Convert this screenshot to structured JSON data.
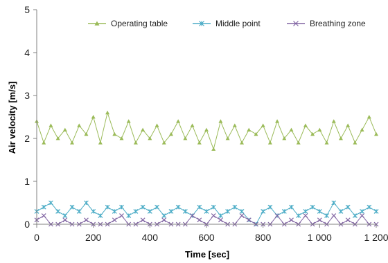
{
  "chart_data": {
    "type": "line",
    "title": "",
    "xlabel": "Time [sec]",
    "ylabel": "Air velocity [m/s]",
    "xlim": [
      0,
      1200
    ],
    "ylim": [
      0,
      5
    ],
    "xticks": [
      0,
      200,
      400,
      600,
      800,
      1000,
      1200
    ],
    "xtick_labels": [
      "0",
      "200",
      "400",
      "600",
      "800",
      "1 000",
      "1 200"
    ],
    "yticks": [
      0,
      1,
      2,
      3,
      4,
      5
    ],
    "ytick_labels": [
      "0",
      "1",
      "2",
      "3",
      "4",
      "5"
    ],
    "grid": false,
    "legend_position": "top",
    "x": [
      0,
      25,
      50,
      75,
      100,
      125,
      150,
      175,
      200,
      225,
      250,
      275,
      300,
      325,
      350,
      375,
      400,
      425,
      450,
      475,
      500,
      525,
      550,
      575,
      600,
      625,
      650,
      675,
      700,
      725,
      750,
      775,
      800,
      825,
      850,
      875,
      900,
      925,
      950,
      975,
      1000,
      1025,
      1050,
      1075,
      1100,
      1125,
      1150,
      1175,
      1200
    ],
    "series": [
      {
        "name": "Operating table",
        "color": "#9bbb59",
        "marker": "triangle",
        "values": [
          2.4,
          1.9,
          2.3,
          2.0,
          2.2,
          1.9,
          2.3,
          2.1,
          2.5,
          1.9,
          2.6,
          2.1,
          2.0,
          2.4,
          1.9,
          2.2,
          2.0,
          2.3,
          1.9,
          2.1,
          2.4,
          2.0,
          2.3,
          1.9,
          2.2,
          1.75,
          2.4,
          2.0,
          2.3,
          1.9,
          2.2,
          2.1,
          2.3,
          1.9,
          2.4,
          2.0,
          2.2,
          1.9,
          2.3,
          2.1,
          2.2,
          1.9,
          2.4,
          2.0,
          2.3,
          1.9,
          2.2,
          2.5,
          2.1
        ]
      },
      {
        "name": "Middle point",
        "color": "#4bacc6",
        "marker": "asterisk",
        "values": [
          0.3,
          0.4,
          0.5,
          0.3,
          0.2,
          0.4,
          0.3,
          0.5,
          0.3,
          0.2,
          0.4,
          0.3,
          0.4,
          0.2,
          0.3,
          0.4,
          0.3,
          0.4,
          0.2,
          0.3,
          0.4,
          0.3,
          0.2,
          0.4,
          0.3,
          0.4,
          0.2,
          0.3,
          0.4,
          0.3,
          0.1,
          0.0,
          0.3,
          0.4,
          0.2,
          0.3,
          0.4,
          0.2,
          0.3,
          0.4,
          0.3,
          0.2,
          0.5,
          0.3,
          0.4,
          0.2,
          0.3,
          0.4,
          0.3
        ]
      },
      {
        "name": "Breathing zone",
        "color": "#8064a2",
        "marker": "x",
        "values": [
          0.1,
          0.2,
          0.0,
          0.0,
          0.1,
          0.0,
          0.0,
          0.1,
          0.0,
          0.0,
          0.0,
          0.1,
          0.2,
          0.0,
          0.0,
          0.1,
          0.0,
          0.0,
          0.1,
          0.0,
          0.0,
          0.0,
          0.2,
          0.1,
          0.0,
          0.2,
          0.1,
          0.0,
          0.0,
          0.2,
          0.1,
          0.0,
          0.0,
          0.0,
          0.2,
          0.0,
          0.1,
          0.0,
          0.2,
          0.0,
          0.1,
          0.0,
          0.2,
          0.0,
          0.1,
          0.0,
          0.2,
          0.0,
          0.0
        ]
      }
    ]
  }
}
